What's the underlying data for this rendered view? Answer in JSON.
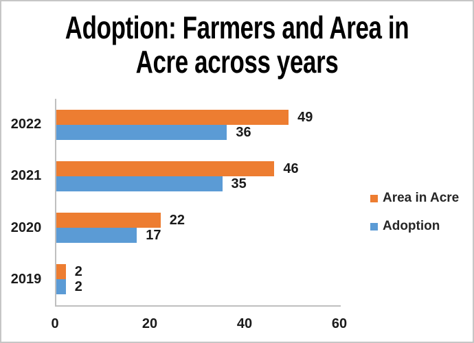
{
  "chart_data": {
    "type": "bar",
    "orientation": "horizontal",
    "title": "Adoption: Farmers and Area in Acre across years",
    "title_lines": [
      "Adoption: Farmers and Area in",
      "Acre across years"
    ],
    "categories": [
      "2022",
      "2021",
      "2020",
      "2019"
    ],
    "series": [
      {
        "name": "Area in Acre",
        "color": "#ED7D31",
        "values": [
          49,
          46,
          22,
          2
        ]
      },
      {
        "name": "Adoption",
        "color": "#5B9BD5",
        "values": [
          36,
          35,
          17,
          2
        ]
      }
    ],
    "x_ticks": [
      "0",
      "20",
      "40",
      "60"
    ],
    "xlim": [
      0,
      60
    ],
    "data_labels": true,
    "grid": false,
    "legend_position": "right",
    "axis_color": "#bfbfbf",
    "text_color": "#1a1a1a",
    "background_color": "#ffffff"
  }
}
